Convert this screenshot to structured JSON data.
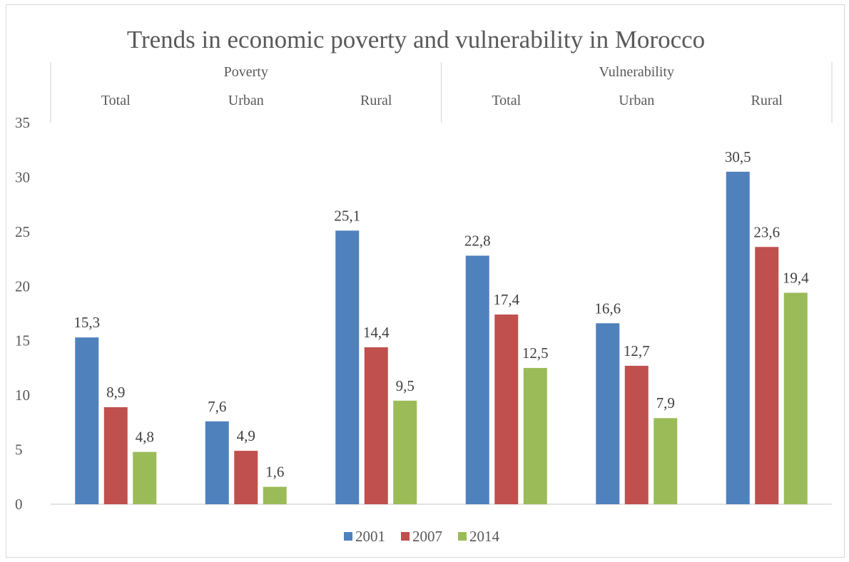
{
  "chart_data": {
    "type": "bar",
    "title": "Trends in economic poverty and vulnerability in Morocco",
    "groups": [
      {
        "label": "Poverty",
        "categories": [
          "Total",
          "Urban",
          "Rural"
        ]
      },
      {
        "label": "Vulnerability",
        "categories": [
          "Total",
          "Urban",
          "Rural"
        ]
      }
    ],
    "categories": [
      "Total",
      "Urban",
      "Rural",
      "Total",
      "Urban",
      "Rural"
    ],
    "series": [
      {
        "name": "2001",
        "color": "#4f81bd",
        "values": [
          15.3,
          7.6,
          25.1,
          22.8,
          16.6,
          30.5
        ],
        "labels": [
          "15,3",
          "7,6",
          "25,1",
          "22,8",
          "16,6",
          "30,5"
        ]
      },
      {
        "name": "2007",
        "color": "#c0504d",
        "values": [
          8.9,
          4.9,
          14.4,
          17.4,
          12.7,
          23.6
        ],
        "labels": [
          "8,9",
          "4,9",
          "14,4",
          "17,4",
          "12,7",
          "23,6"
        ]
      },
      {
        "name": "2014",
        "color": "#9bbb59",
        "values": [
          4.8,
          1.6,
          9.5,
          12.5,
          7.9,
          19.4
        ],
        "labels": [
          "4,8",
          "1,6",
          "9,5",
          "12,5",
          "7,9",
          "19,4"
        ]
      }
    ],
    "yticks": [
      "0",
      "5",
      "10",
      "15",
      "20",
      "25",
      "30",
      "35"
    ],
    "ylim": [
      0,
      35
    ],
    "xlabel": "",
    "ylabel": "",
    "legend_position": "bottom",
    "grid": false
  }
}
